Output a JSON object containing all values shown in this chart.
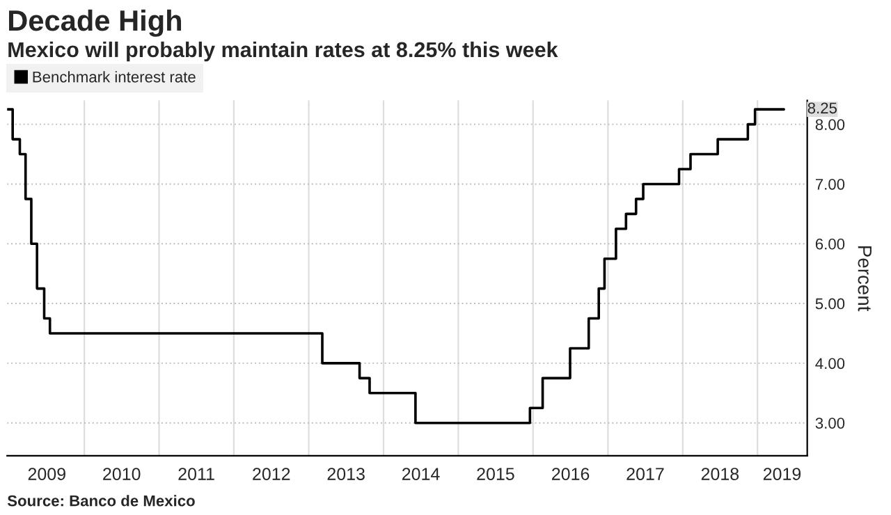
{
  "chart_data": {
    "type": "step",
    "title": "Decade High",
    "subtitle": "Mexico will probably maintain rates at 8.25% this week",
    "ylabel": "Percent",
    "x": [
      "2008-12-20",
      "2009-01-16",
      "2009-02-20",
      "2009-03-20",
      "2009-04-17",
      "2009-05-15",
      "2009-06-19",
      "2009-07-17",
      "2013-03-08",
      "2013-09-06",
      "2013-10-25",
      "2014-06-06",
      "2015-12-17",
      "2016-02-17",
      "2016-06-30",
      "2016-09-29",
      "2016-11-17",
      "2016-12-15",
      "2017-02-09",
      "2017-03-30",
      "2017-05-18",
      "2017-06-22",
      "2017-12-14",
      "2018-02-08",
      "2018-06-21",
      "2018-11-15",
      "2018-12-20",
      "2019-05-10"
    ],
    "series": [
      {
        "name": "Benchmark interest rate",
        "color": "#000000",
        "values": [
          8.25,
          7.75,
          7.5,
          6.75,
          6.0,
          5.25,
          4.75,
          4.5,
          4.0,
          3.75,
          3.5,
          3.0,
          3.25,
          3.75,
          4.25,
          4.75,
          5.25,
          5.75,
          6.25,
          6.5,
          6.75,
          7.0,
          7.25,
          7.5,
          7.75,
          8.0,
          8.25,
          8.25
        ]
      }
    ],
    "xlim": [
      "2008-12-20",
      "2019-09-01"
    ],
    "xticks": [
      {
        "value": "2009-07-02",
        "label": "2009"
      },
      {
        "value": "2010-01-01",
        "label": null
      },
      {
        "value": "2010-07-02",
        "label": "2010"
      },
      {
        "value": "2011-01-01",
        "label": null
      },
      {
        "value": "2011-07-02",
        "label": "2011"
      },
      {
        "value": "2012-01-01",
        "label": null
      },
      {
        "value": "2012-07-02",
        "label": "2012"
      },
      {
        "value": "2013-01-01",
        "label": null
      },
      {
        "value": "2013-07-02",
        "label": "2013"
      },
      {
        "value": "2014-01-01",
        "label": null
      },
      {
        "value": "2014-07-02",
        "label": "2014"
      },
      {
        "value": "2015-01-01",
        "label": null
      },
      {
        "value": "2015-07-02",
        "label": "2015"
      },
      {
        "value": "2016-01-01",
        "label": null
      },
      {
        "value": "2016-07-02",
        "label": "2016"
      },
      {
        "value": "2017-01-01",
        "label": null
      },
      {
        "value": "2017-07-02",
        "label": "2017"
      },
      {
        "value": "2018-01-01",
        "label": null
      },
      {
        "value": "2018-07-02",
        "label": "2018"
      },
      {
        "value": "2019-01-01",
        "label": null
      },
      {
        "value": "2019-05-01",
        "label": "2019"
      }
    ],
    "ylim": [
      2.45,
      8.4
    ],
    "yticks": [
      {
        "value": 3,
        "label": "3.00"
      },
      {
        "value": 4,
        "label": "4.00"
      },
      {
        "value": 5,
        "label": "5.00"
      },
      {
        "value": 6,
        "label": "6.00"
      },
      {
        "value": 7,
        "label": "7.00"
      },
      {
        "value": 8,
        "label": "8.00"
      }
    ],
    "grid": true,
    "legend": "top left",
    "annotations": [
      {
        "text": "8.25",
        "x": "2019-05-10",
        "y": 8.25
      },
      "Source: Banco de Mexico"
    ]
  }
}
